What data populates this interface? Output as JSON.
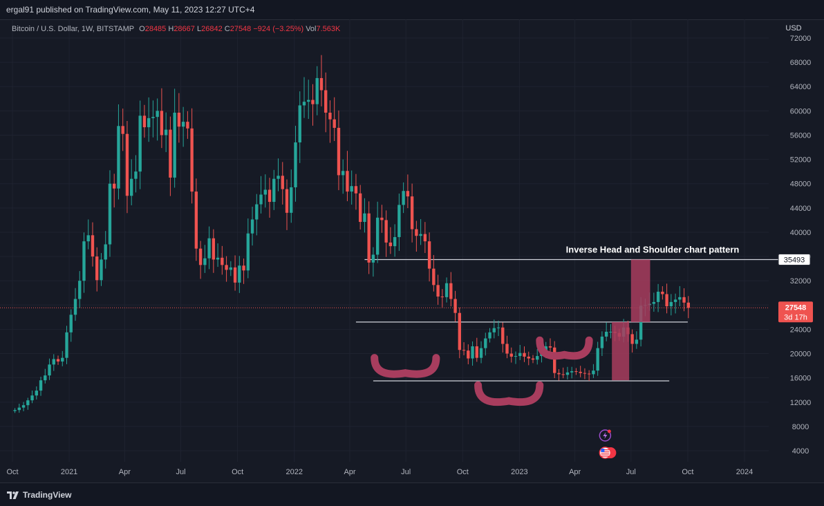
{
  "header": {
    "published": "ergal91 published on TradingView.com, May 11, 2023 12:27 UTC+4"
  },
  "legend": {
    "symbol": "Bitcoin / U.S. Dollar, 1W, BITSTAMP",
    "o_label": "O",
    "o_value": "28485",
    "h_label": "H",
    "h_value": "28667",
    "l_label": "L",
    "l_value": "26842",
    "c_label": "C",
    "c_value": "27548",
    "change": "−924 (−3.25%)",
    "vol_label": "Vol",
    "vol_value": "7.563K"
  },
  "footer": {
    "brand": "TradingView"
  },
  "colors": {
    "background": "#161a25",
    "up": "#26a69a",
    "down": "#ef5350",
    "pattern": "#a83d5e",
    "level_line": "#d1d4dc",
    "text": "#d1d4dc"
  },
  "icons": [
    "tradingview-logo-icon",
    "lightning-event-icon",
    "us-flag-event-icon"
  ],
  "chart_data": {
    "type": "candlestick",
    "currency": "USD",
    "y_axis": {
      "min": 2000,
      "max": 73000,
      "ticks": [
        4000,
        8000,
        12000,
        16000,
        20000,
        24000,
        28000,
        32000,
        36000,
        40000,
        44000,
        48000,
        52000,
        56000,
        60000,
        64000,
        68000,
        72000
      ],
      "tick_labels": [
        "4000",
        "8000",
        "12000",
        "16000",
        "20000",
        "24000",
        "28000",
        "32000",
        "36000",
        "40000",
        "44000",
        "48000",
        "52000",
        "56000",
        "60000",
        "64000",
        "68000",
        "72000"
      ],
      "side": "right"
    },
    "x_axis": {
      "ticks": [
        "2020-10-01",
        "2021-01-01",
        "2021-04-01",
        "2021-07-01",
        "2021-10-01",
        "2022-01-01",
        "2022-04-01",
        "2022-07-01",
        "2022-10-01",
        "2023-01-01",
        "2023-04-01",
        "2023-07-01",
        "2023-10-01",
        "2024-01-01"
      ],
      "tick_labels": [
        "Oct",
        "2021",
        "Apr",
        "Jul",
        "Oct",
        "2022",
        "Apr",
        "Jul",
        "Oct",
        "2023",
        "Apr",
        "Jul",
        "Oct",
        "2024"
      ]
    },
    "series": [
      {
        "start_date": "2020-10-05",
        "interval_days": 7,
        "closes": [
          10700,
          11100,
          11500,
          12300,
          13100,
          13900,
          15600,
          16400,
          18200,
          19100,
          18700,
          19300,
          23500,
          26400,
          29000,
          32000,
          38500,
          39500,
          36000,
          32100,
          35500,
          38000,
          48000,
          47200,
          57500,
          56200,
          46000,
          48800,
          50000,
          59200,
          57300,
          58800,
          59000,
          60000,
          56000,
          56900,
          49000,
          59700,
          57400,
          58200,
          57100,
          46700,
          37300,
          34600,
          35700,
          39000,
          35500,
          35800,
          34600,
          33800,
          34200,
          31700,
          34500,
          33700,
          39800,
          42100,
          44600,
          46200,
          47000,
          45000,
          48800,
          49300,
          47100,
          43200,
          47400,
          54800,
          60900,
          61500,
          61800,
          61100,
          65400,
          63400,
          59700,
          58600,
          57200,
          49400,
          50100,
          46700,
          47600,
          46400,
          41700,
          43100,
          35000,
          36300,
          42400,
          42000,
          38300,
          37700,
          39200,
          44500,
          46800,
          45900,
          40500,
          39400,
          39700,
          38500,
          34000,
          31300,
          29400,
          29300,
          31600,
          29000,
          26700,
          20600,
          20500,
          19200,
          21200,
          19300,
          20900,
          22500,
          23500,
          24200,
          24300,
          21600,
          20000,
          19500,
          19600,
          20100,
          19500,
          19200,
          19000,
          19600,
          20600,
          21200,
          21000,
          16800,
          16600,
          16500,
          16900,
          17100,
          17000,
          16800,
          16700,
          16600,
          17200,
          20900,
          22800,
          23600,
          23600,
          23400,
          22800,
          24300,
          23200,
          21600,
          22300,
          27900,
          28000,
          28200,
          28500,
          30200,
          29800,
          27800,
          28500,
          28900,
          29300,
          28400,
          27548
        ],
        "last": {
          "value": 27548,
          "label": "27548",
          "timer": "3d 17h"
        }
      }
    ],
    "annotations": {
      "title": "Inverse Head and Shoulder chart pattern",
      "target_label": "35493",
      "levels": [
        {
          "name": "target",
          "value": 35493,
          "from": "2022-04-25",
          "to": "2024-05-01"
        },
        {
          "name": "neckline",
          "value": 25200,
          "from": "2022-04-11",
          "to": "2023-10-01"
        },
        {
          "name": "base",
          "value": 15500,
          "from": "2022-05-09",
          "to": "2023-09-01"
        }
      ],
      "shoulders_and_head": [
        {
          "name": "left-shoulder",
          "center_date": "2022-06-30",
          "bottom": 16800,
          "half_width_days": 50,
          "depth": 2500
        },
        {
          "name": "head",
          "center_date": "2022-12-15",
          "bottom": 12200,
          "half_width_days": 50,
          "depth": 2600
        },
        {
          "name": "right-shoulder",
          "center_date": "2023-03-15",
          "bottom": 19800,
          "half_width_days": 40,
          "depth": 2400
        }
      ],
      "boxes": [
        {
          "name": "measured-move",
          "from_date": "2023-05-31",
          "to_date": "2023-06-28",
          "low": 15600,
          "high": 25200
        },
        {
          "name": "projected-move",
          "from_date": "2023-07-01",
          "to_date": "2023-08-01",
          "low": 25200,
          "high": 35493
        }
      ],
      "current_price_line": 27548
    }
  }
}
